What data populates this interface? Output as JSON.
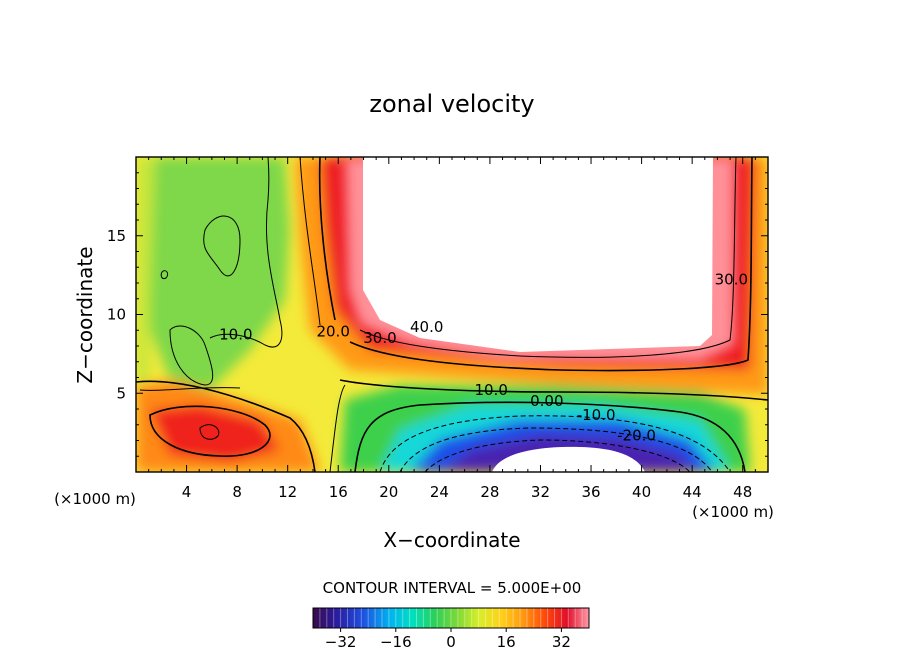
{
  "chart_data": {
    "type": "contour",
    "title": "zonal velocity",
    "xlabel": "X−coordinate",
    "ylabel": "Z−coordinate",
    "x_unit_left": "(×1000 m)",
    "x_unit_right": "(×1000 m)",
    "xlim": [
      0,
      50
    ],
    "ylim": [
      0,
      20
    ],
    "xticks": [
      4,
      8,
      12,
      16,
      20,
      24,
      28,
      32,
      36,
      40,
      44,
      48
    ],
    "yticks": [
      5,
      10,
      15
    ],
    "contour_interval_text": "CONTOUR INTERVAL = 5.000E+00",
    "contour_labels": [
      {
        "text": "10.0",
        "x": 7.9,
        "z": 8.4
      },
      {
        "text": "20.0",
        "x": 15.6,
        "z": 8.6
      },
      {
        "text": "30.0",
        "x": 19.3,
        "z": 8.2
      },
      {
        "text": "40.0",
        "x": 23.0,
        "z": 8.9
      },
      {
        "text": "30.0",
        "x": 47.1,
        "z": 11.9
      },
      {
        "text": "10.0",
        "x": 28.1,
        "z": 4.9
      },
      {
        "text": "0.00",
        "x": 32.5,
        "z": 4.2
      },
      {
        "text": "-10.0",
        "x": 36.4,
        "z": 3.3
      },
      {
        "text": "-20.0",
        "x": 39.6,
        "z": 2.0
      }
    ],
    "colorbar": {
      "min": -40,
      "max": 40,
      "tick_labels": [
        "−32",
        "−16",
        "0",
        "16",
        "32"
      ],
      "tick_values": [
        -32,
        -16,
        0,
        16,
        32
      ]
    }
  }
}
